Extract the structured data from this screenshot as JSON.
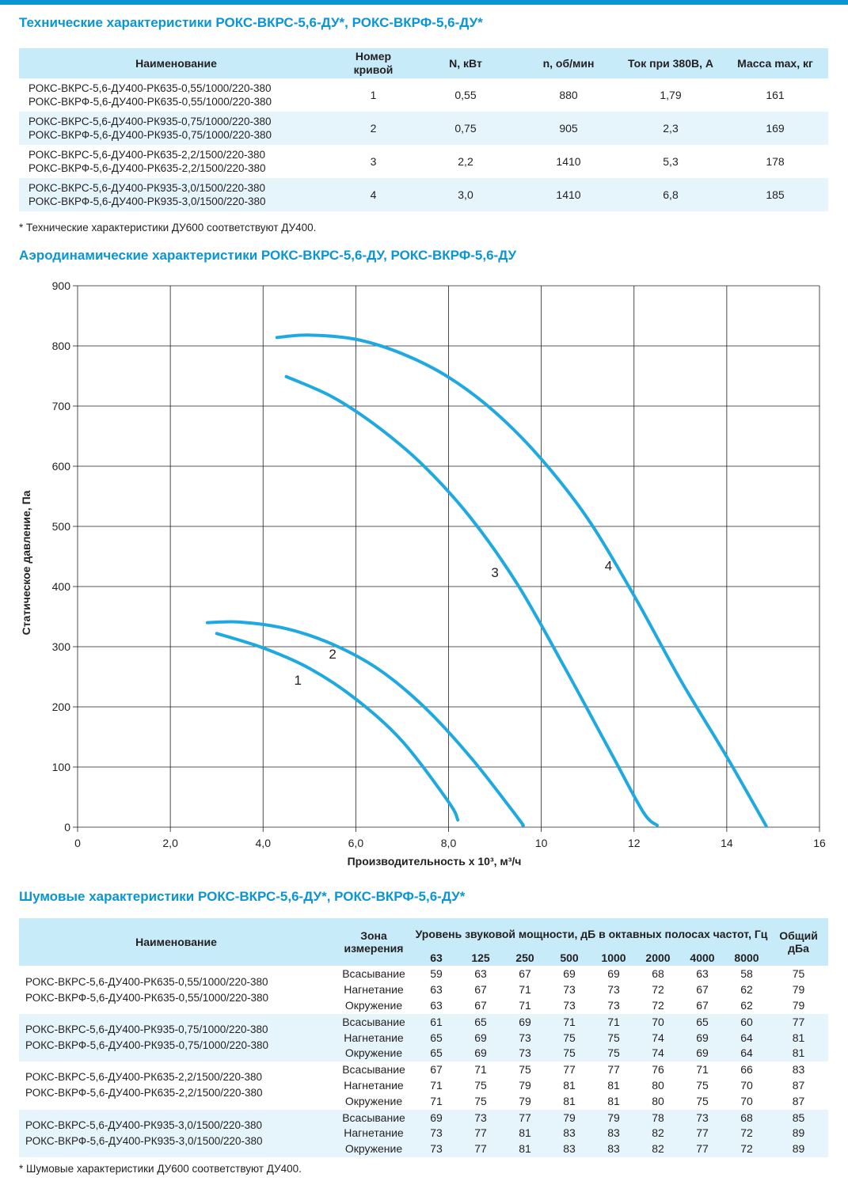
{
  "colors": {
    "accent": "#0a95d3",
    "header_bg": "#c8ebf9",
    "row_shade": "#e6f5fc",
    "curve": "#1fa9e1"
  },
  "tech": {
    "title": "Технические характеристики РОКС-ВКРС-5,6-ДУ*, РОКС-ВКРФ-5,6-ДУ*",
    "headers": [
      "Наименование",
      "Номер кривой",
      "N, кВт",
      "n, об/мин",
      "Ток при 380В, А",
      "Масса max, кг"
    ],
    "rows": [
      {
        "name1": "РОКС-ВКРС-5,6-ДУ400-РК635-0,55/1000/220-380",
        "name2": "РОКС-ВКРФ-5,6-ДУ400-РК635-0,55/1000/220-380",
        "curve": "1",
        "power": "0,55",
        "rpm": "880",
        "current": "1,79",
        "mass": "161"
      },
      {
        "name1": "РОКС-ВКРС-5,6-ДУ400-РК935-0,75/1000/220-380",
        "name2": "РОКС-ВКРФ-5,6-ДУ400-РК935-0,75/1000/220-380",
        "curve": "2",
        "power": "0,75",
        "rpm": "905",
        "current": "2,3",
        "mass": "169"
      },
      {
        "name1": "РОКС-ВКРС-5,6-ДУ400-РК635-2,2/1500/220-380",
        "name2": "РОКС-ВКРФ-5,6-ДУ400-РК635-2,2/1500/220-380",
        "curve": "3",
        "power": "2,2",
        "rpm": "1410",
        "current": "5,3",
        "mass": "178"
      },
      {
        "name1": "РОКС-ВКРС-5,6-ДУ400-РК935-3,0/1500/220-380",
        "name2": "РОКС-ВКРФ-5,6-ДУ400-РК935-3,0/1500/220-380",
        "curve": "4",
        "power": "3,0",
        "rpm": "1410",
        "current": "6,8",
        "mass": "185"
      }
    ],
    "footnote": "* Технические характеристики ДУ600 соответствуют ДУ400."
  },
  "aero": {
    "title": "Аэродинамические характеристики РОКС-ВКРС-5,6-ДУ, РОКС-ВКРФ-5,6-ДУ"
  },
  "chart_data": {
    "type": "line",
    "title": "",
    "xlabel": "Производительность х 10³, м³/ч",
    "ylabel": "Статическое давление, Па",
    "xlim": [
      0,
      16
    ],
    "ylim": [
      0,
      900
    ],
    "x_ticks": [
      "0",
      "2,0",
      "4,0",
      "6,0",
      "8,0",
      "10",
      "12",
      "14",
      "16"
    ],
    "y_ticks": [
      "0",
      "100",
      "200",
      "300",
      "400",
      "500",
      "600",
      "700",
      "800",
      "900"
    ],
    "grid": true,
    "series": [
      {
        "name": "1",
        "label_at": [
          4.75,
          237
        ],
        "points": [
          [
            3.0,
            322
          ],
          [
            4.0,
            298
          ],
          [
            5.0,
            264
          ],
          [
            6.0,
            213
          ],
          [
            7.0,
            143
          ],
          [
            8.0,
            42
          ],
          [
            8.2,
            12
          ]
        ]
      },
      {
        "name": "2",
        "label_at": [
          5.5,
          280
        ],
        "points": [
          [
            2.8,
            340
          ],
          [
            3.5,
            341
          ],
          [
            4.5,
            330
          ],
          [
            5.5,
            304
          ],
          [
            6.5,
            262
          ],
          [
            7.5,
            198
          ],
          [
            8.5,
            114
          ],
          [
            9.5,
            15
          ],
          [
            9.6,
            3
          ]
        ]
      },
      {
        "name": "3",
        "label_at": [
          9.0,
          416
        ],
        "points": [
          [
            4.5,
            749
          ],
          [
            5.5,
            715
          ],
          [
            6.5,
            664
          ],
          [
            7.5,
            598
          ],
          [
            8.5,
            512
          ],
          [
            9.5,
            402
          ],
          [
            10.5,
            266
          ],
          [
            11.5,
            124
          ],
          [
            12.2,
            25
          ],
          [
            12.5,
            3
          ]
        ]
      },
      {
        "name": "4",
        "label_at": [
          11.45,
          427
        ],
        "points": [
          [
            4.3,
            814
          ],
          [
            5.0,
            818
          ],
          [
            6.0,
            811
          ],
          [
            7.0,
            787
          ],
          [
            8.0,
            748
          ],
          [
            9.0,
            690
          ],
          [
            10.0,
            612
          ],
          [
            11.0,
            513
          ],
          [
            12.0,
            385
          ],
          [
            13.0,
            245
          ],
          [
            14.0,
            117
          ],
          [
            14.85,
            2
          ]
        ]
      }
    ]
  },
  "noise": {
    "title": "Шумовые характеристики РОКС-ВКРС-5,6-ДУ*, РОКС-ВКРФ-5,6-ДУ*",
    "header_name": "Наименование",
    "header_zone": "Зона измерения",
    "header_level": "Уровень звуковой мощности, дБ в октавных полосах частот, Гц",
    "header_total": "Общий дБа",
    "freqs": [
      "63",
      "125",
      "250",
      "500",
      "1000",
      "2000",
      "4000",
      "8000"
    ],
    "groups": [
      {
        "name1": "РОКС-ВКРС-5,6-ДУ400-РК635-0,55/1000/220-380",
        "name2": "РОКС-ВКРФ-5,6-ДУ400-РК635-0,55/1000/220-380",
        "rows": [
          {
            "zone": "Всасывание",
            "values": [
              "59",
              "63",
              "67",
              "69",
              "69",
              "68",
              "63",
              "58"
            ],
            "total": "75"
          },
          {
            "zone": "Нагнетание",
            "values": [
              "63",
              "67",
              "71",
              "73",
              "73",
              "72",
              "67",
              "62"
            ],
            "total": "79"
          },
          {
            "zone": "Окружение",
            "values": [
              "63",
              "67",
              "71",
              "73",
              "73",
              "72",
              "67",
              "62"
            ],
            "total": "79"
          }
        ]
      },
      {
        "name1": "РОКС-ВКРС-5,6-ДУ400-РК935-0,75/1000/220-380",
        "name2": "РОКС-ВКРФ-5,6-ДУ400-РК935-0,75/1000/220-380",
        "rows": [
          {
            "zone": "Всасывание",
            "values": [
              "61",
              "65",
              "69",
              "71",
              "71",
              "70",
              "65",
              "60"
            ],
            "total": "77"
          },
          {
            "zone": "Нагнетание",
            "values": [
              "65",
              "69",
              "73",
              "75",
              "75",
              "74",
              "69",
              "64"
            ],
            "total": "81"
          },
          {
            "zone": "Окружение",
            "values": [
              "65",
              "69",
              "73",
              "75",
              "75",
              "74",
              "69",
              "64"
            ],
            "total": "81"
          }
        ]
      },
      {
        "name1": "РОКС-ВКРС-5,6-ДУ400-РК635-2,2/1500/220-380",
        "name2": "РОКС-ВКРФ-5,6-ДУ400-РК635-2,2/1500/220-380",
        "rows": [
          {
            "zone": "Всасывание",
            "values": [
              "67",
              "71",
              "75",
              "77",
              "77",
              "76",
              "71",
              "66"
            ],
            "total": "83"
          },
          {
            "zone": "Нагнетание",
            "values": [
              "71",
              "75",
              "79",
              "81",
              "81",
              "80",
              "75",
              "70"
            ],
            "total": "87"
          },
          {
            "zone": "Окружение",
            "values": [
              "71",
              "75",
              "79",
              "81",
              "81",
              "80",
              "75",
              "70"
            ],
            "total": "87"
          }
        ]
      },
      {
        "name1": "РОКС-ВКРС-5,6-ДУ400-РК935-3,0/1500/220-380",
        "name2": "РОКС-ВКРФ-5,6-ДУ400-РК935-3,0/1500/220-380",
        "rows": [
          {
            "zone": "Всасывание",
            "values": [
              "69",
              "73",
              "77",
              "79",
              "79",
              "78",
              "73",
              "68"
            ],
            "total": "85"
          },
          {
            "zone": "Нагнетание",
            "values": [
              "73",
              "77",
              "81",
              "83",
              "83",
              "82",
              "77",
              "72"
            ],
            "total": "89"
          },
          {
            "zone": "Окружение",
            "values": [
              "73",
              "77",
              "81",
              "83",
              "83",
              "82",
              "77",
              "72"
            ],
            "total": "89"
          }
        ]
      }
    ],
    "footnote": "* Шумовые характеристики ДУ600 соответствуют ДУ400."
  }
}
